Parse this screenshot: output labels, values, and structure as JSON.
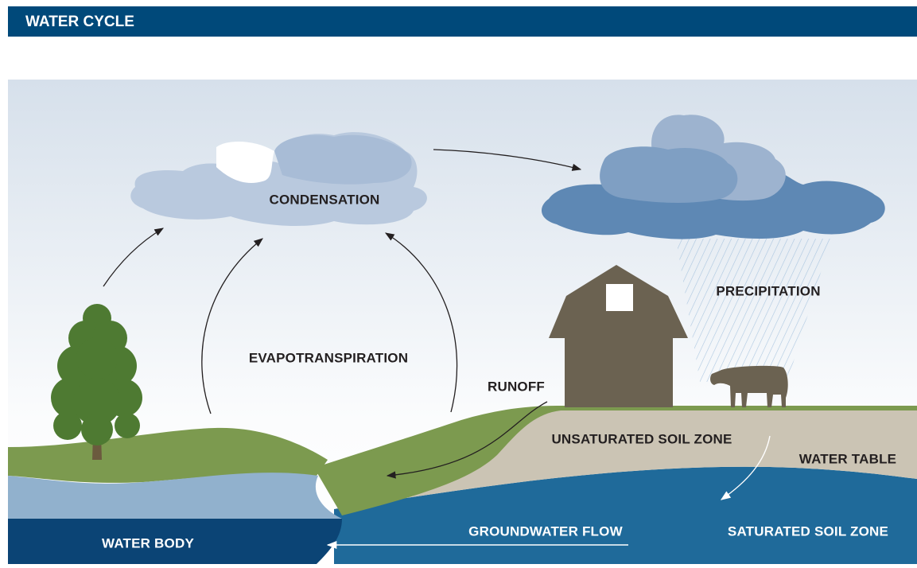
{
  "header": {
    "title": "WATER CYCLE"
  },
  "labels": {
    "condensation": "CONDENSATION",
    "precipitation": "PRECIPITATION",
    "evapotranspiration": "EVAPOTRANSPIRATION",
    "runoff": "RUNOFF",
    "unsaturated_soil_zone": "UNSATURATED SOIL ZONE",
    "water_table": "WATER TABLE",
    "water_body": "WATER BODY",
    "groundwater_flow": "GROUNDWATER FLOW",
    "saturated_soil_zone": "SATURATED SOIL ZONE"
  }
}
